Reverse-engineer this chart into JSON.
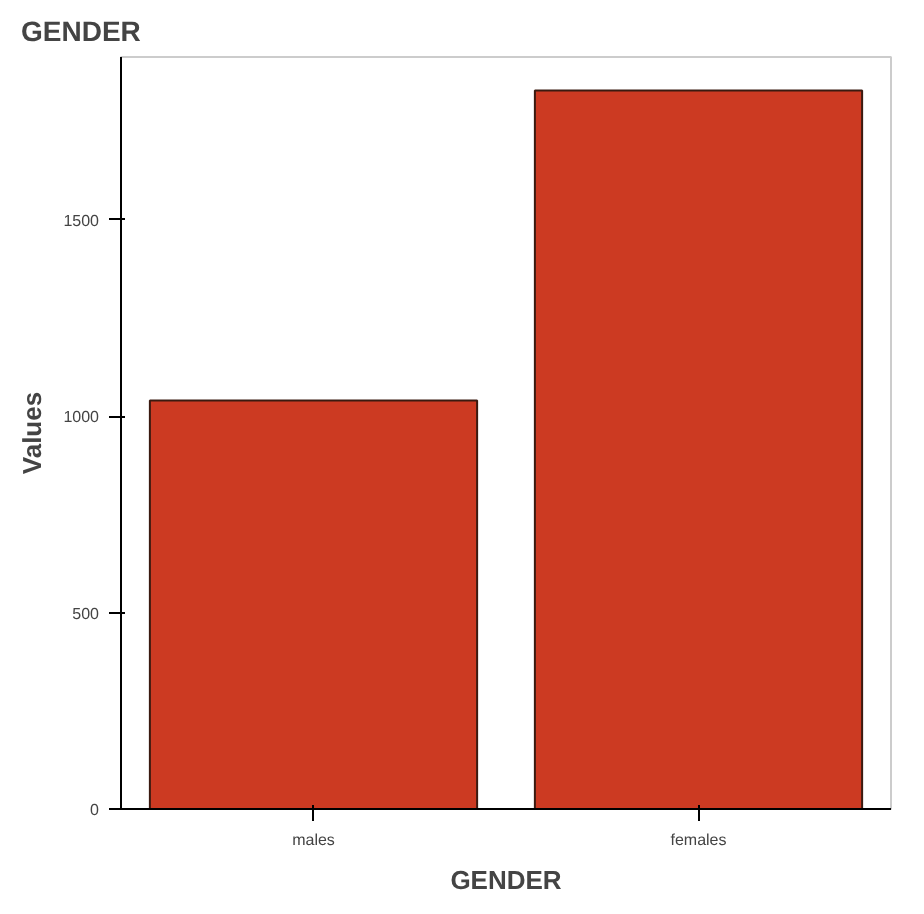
{
  "chart_data": {
    "type": "bar",
    "title": "GENDER",
    "xlabel": "GENDER",
    "ylabel": "Values",
    "categories": [
      "males",
      "females"
    ],
    "values": [
      1040,
      1830
    ],
    "color": "#cc3a22",
    "ylim": [
      0,
      1915
    ],
    "yticks": [
      0,
      500,
      1000,
      1500
    ],
    "grid": false
  }
}
